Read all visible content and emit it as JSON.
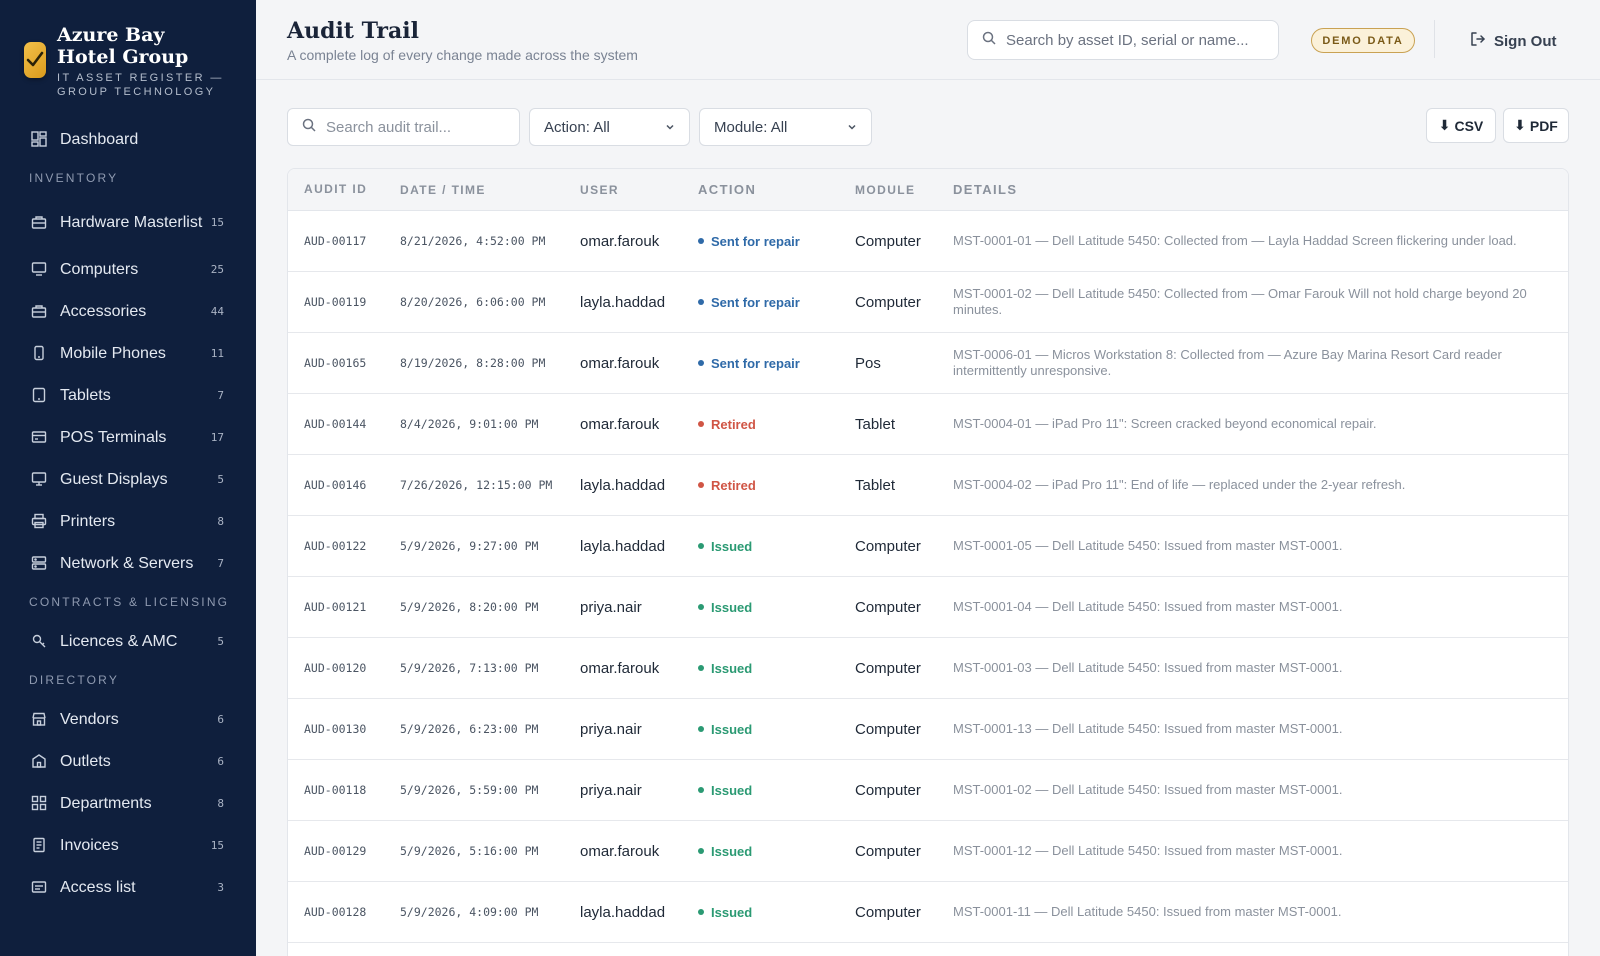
{
  "brand": {
    "name": "Azure Bay Hotel Group",
    "subtitle": "IT ASSET REGISTER — GROUP TECHNOLOGY"
  },
  "sidebar": {
    "dashboard": {
      "label": "Dashboard",
      "icon": "grid-icon"
    },
    "sections": [
      {
        "title": "INVENTORY",
        "items": [
          {
            "label": "Hardware Masterlist",
            "count": "15",
            "icon": "box-icon"
          },
          {
            "label": "Computers",
            "count": "25",
            "icon": "monitor-icon"
          },
          {
            "label": "Accessories",
            "count": "44",
            "icon": "box-icon"
          },
          {
            "label": "Mobile Phones",
            "count": "11",
            "icon": "phone-icon"
          },
          {
            "label": "Tablets",
            "count": "7",
            "icon": "tablet-icon"
          },
          {
            "label": "POS Terminals",
            "count": "17",
            "icon": "card-icon"
          },
          {
            "label": "Guest Displays",
            "count": "5",
            "icon": "display-icon"
          },
          {
            "label": "Printers",
            "count": "8",
            "icon": "printer-icon"
          },
          {
            "label": "Network & Servers",
            "count": "7",
            "icon": "server-icon"
          }
        ]
      },
      {
        "title": "CONTRACTS & LICENSING",
        "items": [
          {
            "label": "Licences & AMC",
            "count": "5",
            "icon": "key-icon"
          }
        ]
      },
      {
        "title": "DIRECTORY",
        "items": [
          {
            "label": "Vendors",
            "count": "6",
            "icon": "store-icon"
          },
          {
            "label": "Outlets",
            "count": "6",
            "icon": "building-icon"
          },
          {
            "label": "Departments",
            "count": "8",
            "icon": "grid-icon"
          },
          {
            "label": "Invoices",
            "count": "15",
            "icon": "invoice-icon"
          },
          {
            "label": "Access list",
            "count": "3",
            "icon": "list-icon"
          }
        ]
      }
    ]
  },
  "header": {
    "title": "Audit Trail",
    "subtitle": "A complete log of every change made across the system",
    "search_placeholder": "Search by asset ID, serial or name...",
    "demo_badge": "DEMO DATA",
    "signout_label": "Sign Out"
  },
  "toolbar": {
    "search_placeholder": "Search audit trail...",
    "action_filter": "Action: All",
    "module_filter": "Module: All",
    "csv_label": "CSV",
    "pdf_label": "PDF"
  },
  "table": {
    "columns": [
      "AUDIT ID",
      "DATE / TIME",
      "USER",
      "ACTION",
      "MODULE",
      "DETAILS"
    ],
    "rows": [
      {
        "id": "AUD-00117",
        "datetime": "8/21/2026, 4:52:00 PM",
        "user": "omar.farouk",
        "action": "Sent for repair",
        "action_type": "repair",
        "module": "Computer",
        "details": "MST-0001-01 — Dell Latitude 5450: Collected from — Layla Haddad Screen flickering under load."
      },
      {
        "id": "AUD-00119",
        "datetime": "8/20/2026, 6:06:00 PM",
        "user": "layla.haddad",
        "action": "Sent for repair",
        "action_type": "repair",
        "module": "Computer",
        "details": "MST-0001-02 — Dell Latitude 5450: Collected from — Omar Farouk Will not hold charge beyond 20 minutes."
      },
      {
        "id": "AUD-00165",
        "datetime": "8/19/2026, 8:28:00 PM",
        "user": "omar.farouk",
        "action": "Sent for repair",
        "action_type": "repair",
        "module": "Pos",
        "details": "MST-0006-01 — Micros Workstation 8: Collected from — Azure Bay Marina Resort Card reader intermittently unresponsive."
      },
      {
        "id": "AUD-00144",
        "datetime": "8/4/2026, 9:01:00 PM",
        "user": "omar.farouk",
        "action": "Retired",
        "action_type": "retired",
        "module": "Tablet",
        "details": "MST-0004-01 — iPad Pro 11\": Screen cracked beyond economical repair."
      },
      {
        "id": "AUD-00146",
        "datetime": "7/26/2026, 12:15:00 PM",
        "user": "layla.haddad",
        "action": "Retired",
        "action_type": "retired",
        "module": "Tablet",
        "details": "MST-0004-02 — iPad Pro 11\": End of life — replaced under the 2-year refresh."
      },
      {
        "id": "AUD-00122",
        "datetime": "5/9/2026, 9:27:00 PM",
        "user": "layla.haddad",
        "action": "Issued",
        "action_type": "issued",
        "module": "Computer",
        "details": "MST-0001-05 — Dell Latitude 5450: Issued from master MST-0001."
      },
      {
        "id": "AUD-00121",
        "datetime": "5/9/2026, 8:20:00 PM",
        "user": "priya.nair",
        "action": "Issued",
        "action_type": "issued",
        "module": "Computer",
        "details": "MST-0001-04 — Dell Latitude 5450: Issued from master MST-0001."
      },
      {
        "id": "AUD-00120",
        "datetime": "5/9/2026, 7:13:00 PM",
        "user": "omar.farouk",
        "action": "Issued",
        "action_type": "issued",
        "module": "Computer",
        "details": "MST-0001-03 — Dell Latitude 5450: Issued from master MST-0001."
      },
      {
        "id": "AUD-00130",
        "datetime": "5/9/2026, 6:23:00 PM",
        "user": "priya.nair",
        "action": "Issued",
        "action_type": "issued",
        "module": "Computer",
        "details": "MST-0001-13 — Dell Latitude 5450: Issued from master MST-0001."
      },
      {
        "id": "AUD-00118",
        "datetime": "5/9/2026, 5:59:00 PM",
        "user": "priya.nair",
        "action": "Issued",
        "action_type": "issued",
        "module": "Computer",
        "details": "MST-0001-02 — Dell Latitude 5450: Issued from master MST-0001."
      },
      {
        "id": "AUD-00129",
        "datetime": "5/9/2026, 5:16:00 PM",
        "user": "omar.farouk",
        "action": "Issued",
        "action_type": "issued",
        "module": "Computer",
        "details": "MST-0001-12 — Dell Latitude 5450: Issued from master MST-0001."
      },
      {
        "id": "AUD-00128",
        "datetime": "5/9/2026, 4:09:00 PM",
        "user": "layla.haddad",
        "action": "Issued",
        "action_type": "issued",
        "module": "Computer",
        "details": "MST-0001-11 — Dell Latitude 5450: Issued from master MST-0001."
      }
    ]
  }
}
